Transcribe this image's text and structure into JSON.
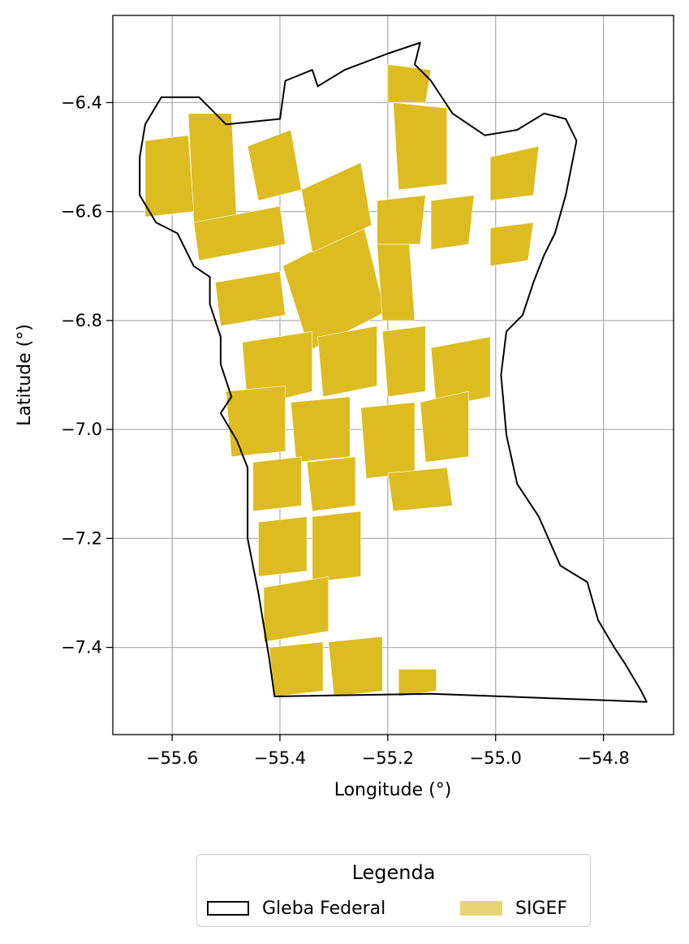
{
  "chart_data": {
    "type": "map",
    "title": "",
    "xlabel": "Longitude (°)",
    "ylabel": "Latitude (°)",
    "xlim": [
      -55.71,
      -54.67
    ],
    "ylim": [
      -7.56,
      -6.24
    ],
    "grid": true,
    "x_ticks": [
      {
        "value": -55.6,
        "label": "−55.6"
      },
      {
        "value": -55.4,
        "label": "−55.4"
      },
      {
        "value": -55.2,
        "label": "−55.2"
      },
      {
        "value": -55.0,
        "label": "−55.0"
      },
      {
        "value": -54.8,
        "label": "−54.8"
      }
    ],
    "y_ticks": [
      {
        "value": -6.4,
        "label": "−6.4"
      },
      {
        "value": -6.6,
        "label": "−6.6"
      },
      {
        "value": -6.8,
        "label": "−6.8"
      },
      {
        "value": -7.0,
        "label": "−7.0"
      },
      {
        "value": -7.2,
        "label": "−7.2"
      },
      {
        "value": -7.4,
        "label": "−7.4"
      }
    ],
    "layers": [
      {
        "name": "Gleba Federal",
        "style": "outline",
        "color": "#000000",
        "coordinates": [
          [
            -55.41,
            -7.49
          ],
          [
            -55.12,
            -7.485
          ],
          [
            -54.72,
            -7.5
          ],
          [
            -54.73,
            -7.48
          ],
          [
            -54.76,
            -7.43
          ],
          [
            -54.78,
            -7.4
          ],
          [
            -54.81,
            -7.35
          ],
          [
            -54.83,
            -7.28
          ],
          [
            -54.88,
            -7.25
          ],
          [
            -54.92,
            -7.16
          ],
          [
            -54.96,
            -7.1
          ],
          [
            -54.98,
            -7.01
          ],
          [
            -54.99,
            -6.9
          ],
          [
            -54.98,
            -6.82
          ],
          [
            -54.95,
            -6.79
          ],
          [
            -54.93,
            -6.73
          ],
          [
            -54.91,
            -6.68
          ],
          [
            -54.89,
            -6.64
          ],
          [
            -54.87,
            -6.57
          ],
          [
            -54.86,
            -6.52
          ],
          [
            -54.85,
            -6.47
          ],
          [
            -54.87,
            -6.43
          ],
          [
            -54.91,
            -6.42
          ],
          [
            -54.96,
            -6.45
          ],
          [
            -55.02,
            -6.46
          ],
          [
            -55.08,
            -6.42
          ],
          [
            -55.12,
            -6.36
          ],
          [
            -55.15,
            -6.33
          ],
          [
            -55.14,
            -6.29
          ],
          [
            -55.2,
            -6.31
          ],
          [
            -55.28,
            -6.34
          ],
          [
            -55.33,
            -6.37
          ],
          [
            -55.34,
            -6.34
          ],
          [
            -55.39,
            -6.36
          ],
          [
            -55.4,
            -6.43
          ],
          [
            -55.5,
            -6.44
          ],
          [
            -55.55,
            -6.39
          ],
          [
            -55.62,
            -6.39
          ],
          [
            -55.65,
            -6.44
          ],
          [
            -55.66,
            -6.5
          ],
          [
            -55.66,
            -6.57
          ],
          [
            -55.63,
            -6.62
          ],
          [
            -55.59,
            -6.64
          ],
          [
            -55.56,
            -6.7
          ],
          [
            -55.53,
            -6.72
          ],
          [
            -55.53,
            -6.77
          ],
          [
            -55.51,
            -6.83
          ],
          [
            -55.51,
            -6.88
          ],
          [
            -55.49,
            -6.94
          ],
          [
            -55.51,
            -6.97
          ],
          [
            -55.48,
            -7.02
          ],
          [
            -55.46,
            -7.07
          ],
          [
            -55.46,
            -7.15
          ],
          [
            -55.46,
            -7.2
          ],
          [
            -55.45,
            -7.25
          ],
          [
            -55.44,
            -7.3
          ],
          [
            -55.43,
            -7.36
          ],
          [
            -55.42,
            -7.42
          ],
          [
            -55.41,
            -7.49
          ]
        ]
      },
      {
        "name": "SIGEF",
        "style": "fill",
        "color": "#dcbc20",
        "parcels": [
          [
            [
              -55.395,
              -6.7
            ],
            [
              -55.245,
              -6.625
            ],
            [
              -55.205,
              -6.785
            ],
            [
              -55.345,
              -6.855
            ]
          ],
          [
            [
              -55.36,
              -6.56
            ],
            [
              -55.25,
              -6.51
            ],
            [
              -55.23,
              -6.625
            ],
            [
              -55.34,
              -6.675
            ]
          ],
          [
            [
              -55.46,
              -6.48
            ],
            [
              -55.38,
              -6.45
            ],
            [
              -55.36,
              -6.56
            ],
            [
              -55.44,
              -6.58
            ]
          ],
          [
            [
              -55.57,
              -6.42
            ],
            [
              -55.49,
              -6.42
            ],
            [
              -55.48,
              -6.62
            ],
            [
              -55.56,
              -6.62
            ]
          ],
          [
            [
              -55.65,
              -6.47
            ],
            [
              -55.57,
              -6.46
            ],
            [
              -55.56,
              -6.6
            ],
            [
              -55.65,
              -6.61
            ]
          ],
          [
            [
              -55.56,
              -6.62
            ],
            [
              -55.4,
              -6.59
            ],
            [
              -55.39,
              -6.66
            ],
            [
              -55.55,
              -6.69
            ]
          ],
          [
            [
              -55.52,
              -6.73
            ],
            [
              -55.4,
              -6.71
            ],
            [
              -55.39,
              -6.79
            ],
            [
              -55.51,
              -6.81
            ]
          ],
          [
            [
              -55.19,
              -6.4
            ],
            [
              -55.09,
              -6.41
            ],
            [
              -55.09,
              -6.55
            ],
            [
              -55.18,
              -6.56
            ]
          ],
          [
            [
              -55.2,
              -6.33
            ],
            [
              -55.12,
              -6.34
            ],
            [
              -55.13,
              -6.4
            ],
            [
              -55.2,
              -6.4
            ]
          ],
          [
            [
              -55.22,
              -6.58
            ],
            [
              -55.13,
              -6.57
            ],
            [
              -55.14,
              -6.66
            ],
            [
              -55.22,
              -6.66
            ]
          ],
          [
            [
              -55.12,
              -6.58
            ],
            [
              -55.04,
              -6.57
            ],
            [
              -55.05,
              -6.66
            ],
            [
              -55.12,
              -6.67
            ]
          ],
          [
            [
              -55.22,
              -6.66
            ],
            [
              -55.16,
              -6.66
            ],
            [
              -55.15,
              -6.8
            ],
            [
              -55.21,
              -6.8
            ]
          ],
          [
            [
              -55.01,
              -6.63
            ],
            [
              -54.93,
              -6.62
            ],
            [
              -54.94,
              -6.69
            ],
            [
              -55.01,
              -6.7
            ]
          ],
          [
            [
              -55.01,
              -6.5
            ],
            [
              -54.92,
              -6.48
            ],
            [
              -54.93,
              -6.57
            ],
            [
              -55.01,
              -6.58
            ]
          ],
          [
            [
              -55.47,
              -6.84
            ],
            [
              -55.34,
              -6.82
            ],
            [
              -55.34,
              -6.93
            ],
            [
              -55.46,
              -6.96
            ]
          ],
          [
            [
              -55.33,
              -6.83
            ],
            [
              -55.22,
              -6.81
            ],
            [
              -55.22,
              -6.92
            ],
            [
              -55.32,
              -6.94
            ]
          ],
          [
            [
              -55.21,
              -6.82
            ],
            [
              -55.13,
              -6.81
            ],
            [
              -55.13,
              -6.93
            ],
            [
              -55.2,
              -6.94
            ]
          ],
          [
            [
              -55.12,
              -6.85
            ],
            [
              -55.01,
              -6.83
            ],
            [
              -55.01,
              -6.94
            ],
            [
              -55.11,
              -6.96
            ]
          ],
          [
            [
              -55.5,
              -6.93
            ],
            [
              -55.39,
              -6.92
            ],
            [
              -55.39,
              -7.04
            ],
            [
              -55.49,
              -7.05
            ]
          ],
          [
            [
              -55.38,
              -6.95
            ],
            [
              -55.27,
              -6.94
            ],
            [
              -55.27,
              -7.05
            ],
            [
              -55.37,
              -7.06
            ]
          ],
          [
            [
              -55.25,
              -6.96
            ],
            [
              -55.15,
              -6.95
            ],
            [
              -55.15,
              -7.08
            ],
            [
              -55.24,
              -7.09
            ]
          ],
          [
            [
              -55.14,
              -6.95
            ],
            [
              -55.05,
              -6.93
            ],
            [
              -55.05,
              -7.05
            ],
            [
              -55.13,
              -7.06
            ]
          ],
          [
            [
              -55.2,
              -7.08
            ],
            [
              -55.09,
              -7.07
            ],
            [
              -55.08,
              -7.14
            ],
            [
              -55.19,
              -7.15
            ]
          ],
          [
            [
              -55.45,
              -7.06
            ],
            [
              -55.36,
              -7.05
            ],
            [
              -55.36,
              -7.14
            ],
            [
              -55.45,
              -7.15
            ]
          ],
          [
            [
              -55.35,
              -7.06
            ],
            [
              -55.26,
              -7.05
            ],
            [
              -55.26,
              -7.14
            ],
            [
              -55.34,
              -7.15
            ]
          ],
          [
            [
              -55.44,
              -7.17
            ],
            [
              -55.35,
              -7.16
            ],
            [
              -55.35,
              -7.26
            ],
            [
              -55.44,
              -7.27
            ]
          ],
          [
            [
              -55.34,
              -7.16
            ],
            [
              -55.25,
              -7.15
            ],
            [
              -55.25,
              -7.27
            ],
            [
              -55.34,
              -7.28
            ]
          ],
          [
            [
              -55.43,
              -7.29
            ],
            [
              -55.31,
              -7.27
            ],
            [
              -55.31,
              -7.37
            ],
            [
              -55.43,
              -7.39
            ]
          ],
          [
            [
              -55.42,
              -7.4
            ],
            [
              -55.32,
              -7.39
            ],
            [
              -55.32,
              -7.48
            ],
            [
              -55.41,
              -7.49
            ]
          ],
          [
            [
              -55.31,
              -7.39
            ],
            [
              -55.21,
              -7.38
            ],
            [
              -55.21,
              -7.48
            ],
            [
              -55.3,
              -7.49
            ]
          ],
          [
            [
              -55.18,
              -7.44
            ],
            [
              -55.11,
              -7.44
            ],
            [
              -55.11,
              -7.48
            ],
            [
              -55.18,
              -7.49
            ]
          ]
        ]
      }
    ],
    "legend": {
      "title": "Legenda",
      "placement": "below",
      "entries": [
        {
          "label": "Gleba Federal",
          "style": "outline",
          "color": "#000000"
        },
        {
          "label": "SIGEF",
          "style": "fill",
          "color": "#e8d374"
        }
      ]
    }
  }
}
